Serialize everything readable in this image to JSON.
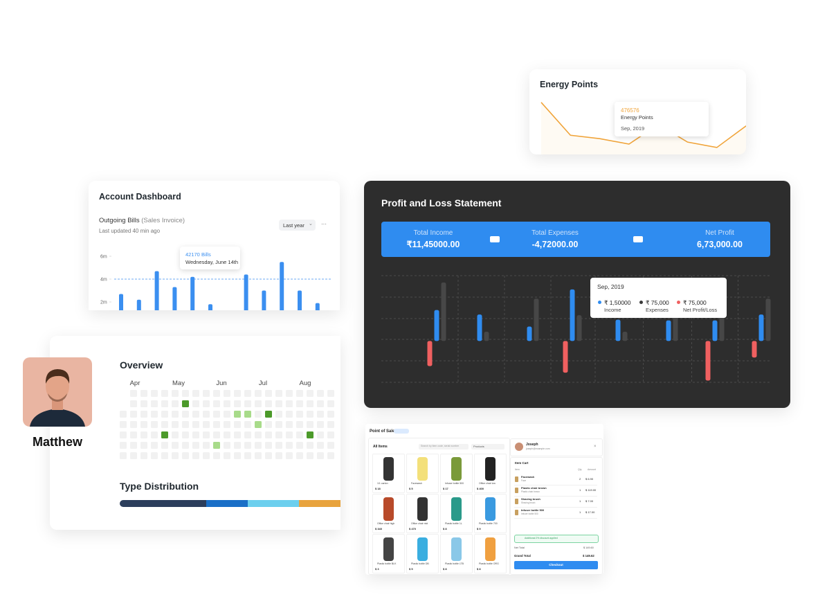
{
  "energy": {
    "title": "Energy Points",
    "tooltip": {
      "value": "476576",
      "label": "Energy Points",
      "date": "Sep, 2019"
    },
    "line": {
      "type": "line",
      "color": "#f0a43a",
      "values": [
        109,
        42,
        35,
        24,
        64,
        28,
        17,
        61
      ],
      "ylim": [
        0,
        120
      ]
    }
  },
  "account": {
    "title": "Account Dashboard",
    "subtitle": "Outgoing Bills",
    "subtitle_note": "(Sales Invoice)",
    "updated": "Last updated 40 min ago",
    "period": "Last year",
    "menu": "···",
    "tooltip": {
      "value": "42170 Bills",
      "date": "Wednesday, June 14th"
    },
    "chart_data": {
      "type": "bar",
      "color": "#3b8ff0",
      "values": [
        2.7,
        2.2,
        4.7,
        3.3,
        4.2,
        1.8,
        null,
        4.4,
        3.0,
        5.5,
        3.0,
        1.9
      ],
      "ylim": [
        0,
        6
      ],
      "yticks": [
        {
          "value": 6,
          "label": "6m"
        },
        {
          "value": 4,
          "label": "4m"
        },
        {
          "value": 2,
          "label": "2m"
        }
      ]
    }
  },
  "pnl": {
    "title": "Profit and Loss Statement",
    "summary": [
      {
        "label": "Total Income",
        "value": "₹11,45000.00"
      },
      {
        "label": "Total Expenses",
        "value": "-4,72000.00"
      },
      {
        "label": "Net Profit",
        "value": "6,73,000.00"
      }
    ],
    "tooltip": {
      "date": "Sep, 2019",
      "items": [
        {
          "value": "₹ 1,50000",
          "label": "Income",
          "color": "#2f8cf0"
        },
        {
          "value": "₹ 75,000",
          "label": "Expenses",
          "color": "#3a3a3a"
        },
        {
          "value": "₹ 75,000",
          "label": "Net Profit/Loss",
          "color": "#f06060"
        }
      ]
    },
    "chart_data": {
      "type": "bar",
      "ylim": [
        -120,
        190
      ],
      "series": [
        {
          "color": "#f06060",
          "values": [
            -73,
            null,
            null,
            -92,
            null,
            null,
            -115,
            -48
          ]
        },
        {
          "color": "#2f8cf0",
          "values": [
            90,
            77,
            42,
            150,
            62,
            60,
            60,
            77
          ]
        },
        {
          "color": "#474747",
          "values": [
            170,
            27,
            123,
            75,
            27,
            115,
            186,
            123
          ]
        }
      ]
    }
  },
  "overview": {
    "title": "Overview",
    "months": [
      "Apr",
      "May",
      "Jun",
      "Jul",
      "Aug"
    ],
    "type_title": "Type Distribution"
  },
  "profile": {
    "name": "Matthew"
  },
  "pos": {
    "title": "Point of Sale",
    "all_items": "All Items",
    "search": "Search by item code, serial number",
    "filter": "Products",
    "products": [
      {
        "name": "1/1 carton",
        "price": "$ 18"
      },
      {
        "name": "Facewash",
        "price": "$ 5"
      },
      {
        "name": "Infuser bottle 500",
        "price": "$ 17"
      },
      {
        "name": "Office chair low",
        "price": "$ 400"
      },
      {
        "name": "Office chair high",
        "price": "$ 340"
      },
      {
        "name": "Office chair mid",
        "price": "$ 470"
      },
      {
        "name": "Plastic bottle 1L",
        "price": "$ 8"
      },
      {
        "name": "Plastic bottle 700",
        "price": "$ 9"
      },
      {
        "name": "Plastic bottle BLK",
        "price": "$ 3"
      },
      {
        "name": "Plastic bottle DB",
        "price": "$ 5"
      },
      {
        "name": "Plastic bottle LTB",
        "price": "$ 8"
      },
      {
        "name": "Plastic bottle ORG",
        "price": "$ 8"
      }
    ],
    "customer": {
      "name": "Joseph",
      "email": "joseph@example.com"
    },
    "cart_title": "Item Cart",
    "cart_head": [
      "Item",
      "Qty",
      "Amount"
    ],
    "cart": [
      {
        "name": "Facewash",
        "sub": "Face",
        "qty": "2",
        "amount": "$ 6.90"
      },
      {
        "name": "Plastic chair brown",
        "sub": "Plastic chair brown",
        "qty": "1",
        "amount": "$ 119.00"
      },
      {
        "name": "Shaving brush",
        "sub": "Shaving brush",
        "qty": "1",
        "amount": "$ 7.00"
      },
      {
        "name": "Infuser bottle 500",
        "sub": "Infuser bottle 500",
        "qty": "1",
        "amount": "$ 17.00"
      }
    ],
    "discount": "Additional 2% discount applied",
    "net_label": "Net Total",
    "net": "$ 149.60",
    "grand_label": "Grand Total",
    "grand": "$ 149.62",
    "checkout": "Checkout"
  }
}
